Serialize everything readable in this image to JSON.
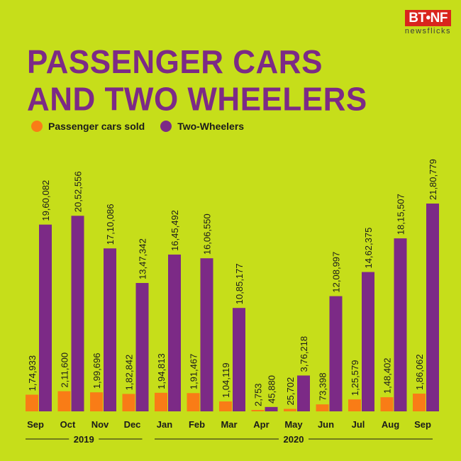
{
  "brand": {
    "logo": "BT•NF",
    "tagline": "newsflicks"
  },
  "chart_data": {
    "type": "bar",
    "title_lines": [
      "PASSENGER CARS",
      "AND TWO WHEELERS"
    ],
    "categories": [
      "Sep",
      "Oct",
      "Nov",
      "Dec",
      "Jan",
      "Feb",
      "Mar",
      "Apr",
      "May",
      "Jun",
      "Jul",
      "Aug",
      "Sep"
    ],
    "years": [
      {
        "label": "2019",
        "from": 0,
        "to": 3
      },
      {
        "label": "2020",
        "from": 4,
        "to": 12
      }
    ],
    "series": [
      {
        "name": "Passenger cars sold",
        "color": "#f97c16",
        "values": [
          174933,
          211600,
          199696,
          182842,
          194813,
          191467,
          104119,
          2753,
          25702,
          73398,
          125579,
          148402,
          186062
        ],
        "labels": [
          "1,74,933",
          "2,11,600",
          "1,99,696",
          "1,82,842",
          "1,94,813",
          "1,91,467",
          "1,04,119",
          "2,753",
          "25,702",
          "73,398",
          "1,25,579",
          "1,48,402",
          "1,86,062"
        ]
      },
      {
        "name": "Two-Wheelers",
        "color": "#7c2a86",
        "values": [
          1960082,
          2052556,
          1710086,
          1347342,
          1645492,
          1606550,
          1085177,
          45880,
          376218,
          1208997,
          1462375,
          1815507,
          2180779
        ],
        "labels": [
          "19,60,082",
          "20,52,556",
          "17,10,086",
          "13,47,342",
          "16,45,492",
          "16,06,550",
          "10,85,177",
          "45,880",
          "3,76,218",
          "12,08,997",
          "14,62,375",
          "18,15,507",
          "21,80,779"
        ]
      }
    ],
    "ylim": [
      0,
      2300000
    ],
    "grid": false,
    "legend_position": "top-left"
  }
}
